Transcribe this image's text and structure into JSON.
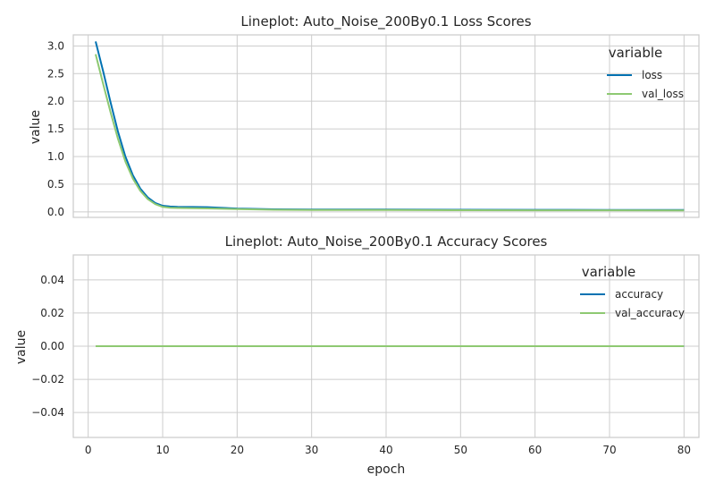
{
  "chart_data": [
    {
      "type": "line",
      "title": "Lineplot: Auto_Noise_200By0.1 Loss Scores",
      "xlabel": "",
      "ylabel": "value",
      "xlim": [
        -2,
        82
      ],
      "ylim": [
        -0.1,
        3.2
      ],
      "xticks": [
        0,
        10,
        20,
        30,
        40,
        50,
        60,
        70,
        80
      ],
      "yticks": [
        0.0,
        0.5,
        1.0,
        1.5,
        2.0,
        2.5,
        3.0
      ],
      "ytick_labels": [
        "0.0",
        "0.5",
        "1.0",
        "1.5",
        "2.0",
        "2.5",
        "3.0"
      ],
      "show_xtick_labels": false,
      "grid": true,
      "legend": {
        "title": "variable",
        "position": "top-right"
      },
      "series": [
        {
          "name": "loss",
          "color": "#0072b2",
          "x": [
            1,
            2,
            3,
            4,
            5,
            6,
            7,
            8,
            9,
            10,
            11,
            12,
            14,
            16,
            20,
            25,
            30,
            40,
            50,
            60,
            70,
            80
          ],
          "y": [
            3.08,
            2.55,
            1.98,
            1.45,
            1.0,
            0.66,
            0.42,
            0.26,
            0.16,
            0.11,
            0.095,
            0.09,
            0.088,
            0.085,
            0.06,
            0.045,
            0.042,
            0.04,
            0.038,
            0.036,
            0.035,
            0.034
          ]
        },
        {
          "name": "val_loss",
          "color": "#8ec972",
          "x": [
            1,
            2,
            3,
            4,
            5,
            6,
            7,
            8,
            9,
            10,
            11,
            12,
            14,
            16,
            20,
            25,
            30,
            40,
            50,
            60,
            70,
            80
          ],
          "y": [
            2.85,
            2.32,
            1.8,
            1.32,
            0.91,
            0.6,
            0.38,
            0.23,
            0.14,
            0.09,
            0.075,
            0.07,
            0.065,
            0.062,
            0.05,
            0.038,
            0.035,
            0.032,
            0.03,
            0.028,
            0.027,
            0.026
          ]
        }
      ]
    },
    {
      "type": "line",
      "title": "Lineplot: Auto_Noise_200By0.1 Accuracy Scores",
      "xlabel": "epoch",
      "ylabel": "value",
      "xlim": [
        -2,
        82
      ],
      "ylim": [
        -0.055,
        0.055
      ],
      "xticks": [
        0,
        10,
        20,
        30,
        40,
        50,
        60,
        70,
        80
      ],
      "yticks": [
        -0.04,
        -0.02,
        0.0,
        0.02,
        0.04
      ],
      "ytick_labels": [
        "−0.04",
        "−0.02",
        "0.00",
        "0.02",
        "0.04"
      ],
      "show_xtick_labels": true,
      "grid": true,
      "legend": {
        "title": "variable",
        "position": "top-right"
      },
      "series": [
        {
          "name": "accuracy",
          "color": "#0072b2",
          "x": [
            1,
            80
          ],
          "y": [
            0.0,
            0.0
          ]
        },
        {
          "name": "val_accuracy",
          "color": "#8ec972",
          "x": [
            1,
            80
          ],
          "y": [
            0.0,
            0.0
          ]
        }
      ]
    }
  ]
}
